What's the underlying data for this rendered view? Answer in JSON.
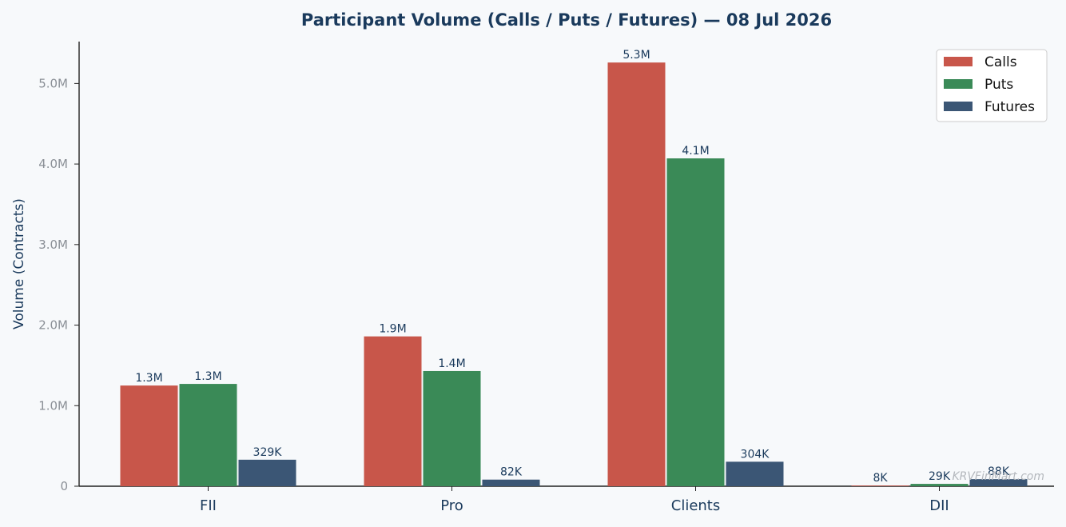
{
  "chart_data": {
    "type": "bar",
    "title": "Participant Volume (Calls / Puts / Futures) — 08 Jul 2026",
    "xlabel": "",
    "ylabel": "Volume (Contracts)",
    "categories": [
      "FII",
      "Pro",
      "Clients",
      "DII"
    ],
    "series": [
      {
        "name": "Calls",
        "color": "#c8564a",
        "values": [
          1250000,
          1860000,
          5260000,
          8000
        ],
        "labels": [
          "1.3M",
          "1.9M",
          "5.3M",
          "8K"
        ]
      },
      {
        "name": "Puts",
        "color": "#3a8a57",
        "values": [
          1270000,
          1430000,
          4070000,
          29000
        ],
        "labels": [
          "1.3M",
          "1.4M",
          "4.1M",
          "29K"
        ]
      },
      {
        "name": "Futures",
        "color": "#3b5675",
        "values": [
          329000,
          82000,
          304000,
          88000
        ],
        "labels": [
          "329K",
          "82K",
          "304K",
          "88K"
        ]
      }
    ],
    "ylim": [
      0,
      5520000
    ],
    "yticks": [
      0,
      1000000,
      2000000,
      3000000,
      4000000,
      5000000
    ],
    "ytick_labels": [
      "0",
      "1.0M",
      "2.0M",
      "3.0M",
      "4.0M",
      "5.0M"
    ],
    "grid": false,
    "legend_position": "top-right",
    "watermark": "KRVFinMart.com"
  }
}
